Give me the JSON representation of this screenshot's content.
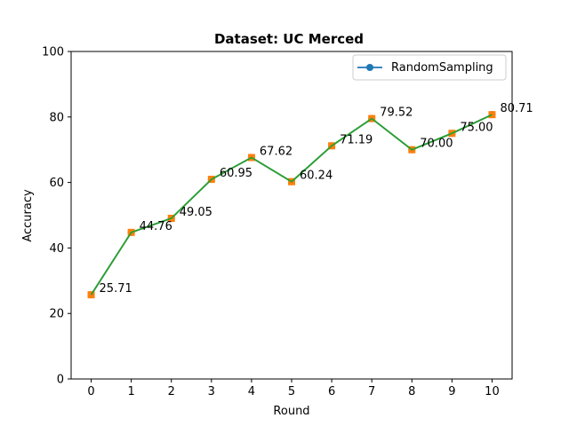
{
  "chart_data": {
    "type": "line",
    "title": "Dataset: UC Merced",
    "xlabel": "Round",
    "ylabel": "Accuracy",
    "x": [
      0,
      1,
      2,
      3,
      4,
      5,
      6,
      7,
      8,
      9,
      10
    ],
    "xticks": [
      "0",
      "1",
      "2",
      "3",
      "4",
      "5",
      "6",
      "7",
      "8",
      "9",
      "10"
    ],
    "yticks": [
      "0",
      "20",
      "40",
      "60",
      "80",
      "100"
    ],
    "ylim": [
      0,
      100
    ],
    "xlim": [
      -0.5,
      10.5
    ],
    "grid": false,
    "legend_position": "top-right",
    "series": [
      {
        "name": "RandomSampling",
        "values": [
          25.71,
          44.76,
          49.05,
          60.95,
          67.62,
          60.24,
          71.19,
          79.52,
          70.0,
          75.0,
          80.71
        ],
        "color": "#1f77b4",
        "marker": "circle"
      }
    ],
    "overlay_colors": {
      "points": "#ff7f0e",
      "line": "#2ca02c"
    },
    "data_labels": [
      "25.71",
      "44.76",
      "49.05",
      "60.95",
      "67.62",
      "60.24",
      "71.19",
      "79.52",
      "70.00",
      "75.00",
      "80.71"
    ]
  }
}
